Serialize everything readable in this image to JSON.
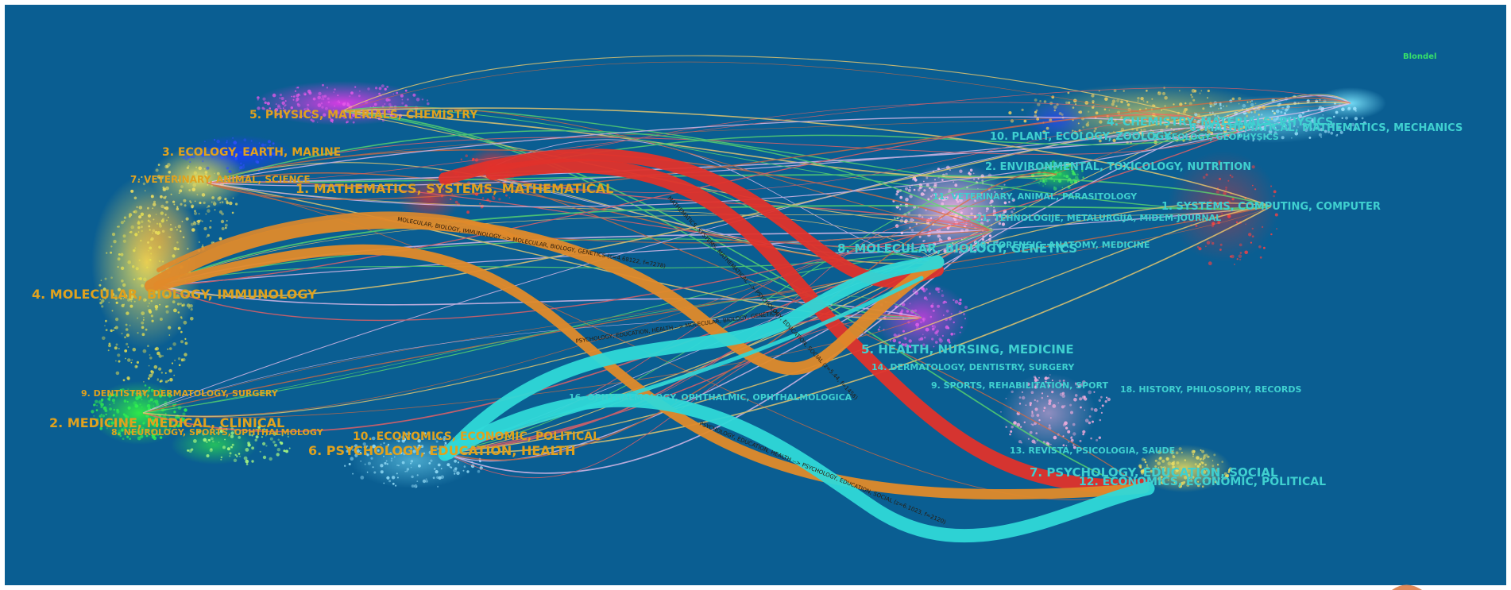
{
  "legend_text": "Blondel",
  "left_labels": [
    "5. PHYSICS, MATERIALS, CHEMISTRY",
    "3. ECOLOGY, EARTH, MARINE",
    "7. VETERINARY, ANIMAL, SCIENCE",
    "1. MATHEMATICS, SYSTEMS, MATHEMATICAL",
    "4. MOLECULAR, BIOLOGY, IMMUNOLOGY",
    "9. DENTISTRY, DERMATOLOGY, SURGERY",
    "2. MEDICINE, MEDICAL, CLINICAL",
    "8. NEUROLOGY, SPORTS, OPHTHALMOLOGY",
    "10. ECONOMICS, ECONOMIC, POLITICAL",
    "6. PSYCHOLOGY, EDUCATION, HEALTH"
  ],
  "right_labels": [
    "4. CHEMISTRY, MATERIALS, PHYSICS",
    "6. MATHEMATICAL, MATHEMATICS, MECHANICS",
    "10. PLANT, ECOLOGY, ZOOLOGY",
    "3. GEOLOGY, GEOPHYSICS",
    "2. ENVIRONMENTAL, TOXICOLOGY, NUTRITION",
    "11. VETERINARY, ANIMAL, PARASITOLOGY",
    "1. SYSTEMS, COMPUTING, COMPUTER",
    "21. TEHNOLOGIJE, METALURGIJA, MIDEM-JOURNAL",
    "8. MOLECULAR, BIOLOGY, GENETICS",
    "20. FORENSIC, ANATOMY, MEDICINE",
    "5. HEALTH, NURSING, MEDICINE",
    "14. DERMATOLOGY, DENTISTRY, SURGERY",
    "9. SPORTS, REHABILITATION, SPORT",
    "18. HISTORY, PHILOSOPHY, RECORDS",
    "16. OPHTHALMOLOGY, OPHTHALMIC, OPHTHALMOLOGICA",
    "13. REVISTA, PSICOLOGIA, SAUDE",
    "7. PSYCHOLOGY, EDUCATION, SOCIAL",
    "12. ECONOMICS, ECONOMIC, POLITICAL"
  ],
  "flow_labels": [
    "MOLECULAR, BIOLOGY, IMMUNOLOGY --> MOLECULAR, BIOLOGY, GENETICS (z=4.68122, f=7278)",
    "MATHEMATICS, SYSTEMS, MATHEMATICAL --> PSYCHOLOGY, EDUCATION, SOCIAL (z=5.44, f=1458)",
    "PSYCHOLOGY, EDUCATION, HEALTH --> MOLECULAR, BIOLOGY, GENETICS",
    "PSYCHOLOGY, EDUCATION, HEALTH --> PSYCHOLOGY, EDUCATION, SOCIAL (z=6.1023, f=2120)"
  ],
  "colors": {
    "background": "#0a5e92",
    "flow_red": "#e0312b",
    "flow_orange": "#e08a2a",
    "flow_cyan": "#2fd8d8",
    "label_left": "#e0a21e",
    "label_right": "#3fd0d0"
  }
}
